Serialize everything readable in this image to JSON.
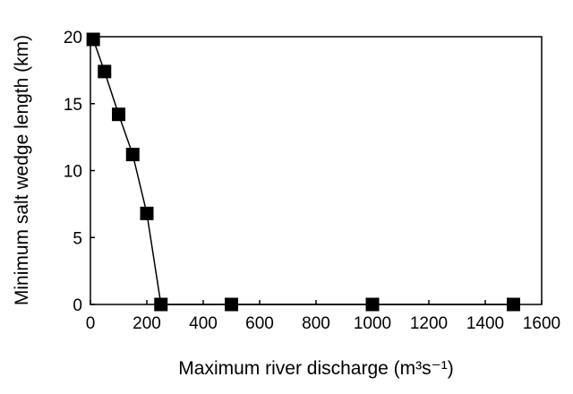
{
  "chart_data": {
    "type": "line",
    "title": "",
    "xlabel": "Maximum river discharge (m³s⁻¹)",
    "ylabel": "Minimum salt wedge length (km)",
    "xlim": [
      0,
      1600
    ],
    "ylim": [
      0,
      20
    ],
    "xticks": [
      "0",
      "200",
      "400",
      "600",
      "800",
      "1000",
      "1200",
      "1400",
      "1600"
    ],
    "yticks": [
      "0",
      "5",
      "10",
      "15",
      "20"
    ],
    "grid": false,
    "marker": "square",
    "color": "#000000",
    "series": [
      {
        "x": [
          10,
          50,
          100,
          150,
          200,
          250,
          500,
          1000,
          1500
        ],
        "y": [
          19.8,
          17.4,
          14.2,
          11.2,
          6.8,
          0,
          0,
          0,
          0
        ]
      }
    ]
  }
}
